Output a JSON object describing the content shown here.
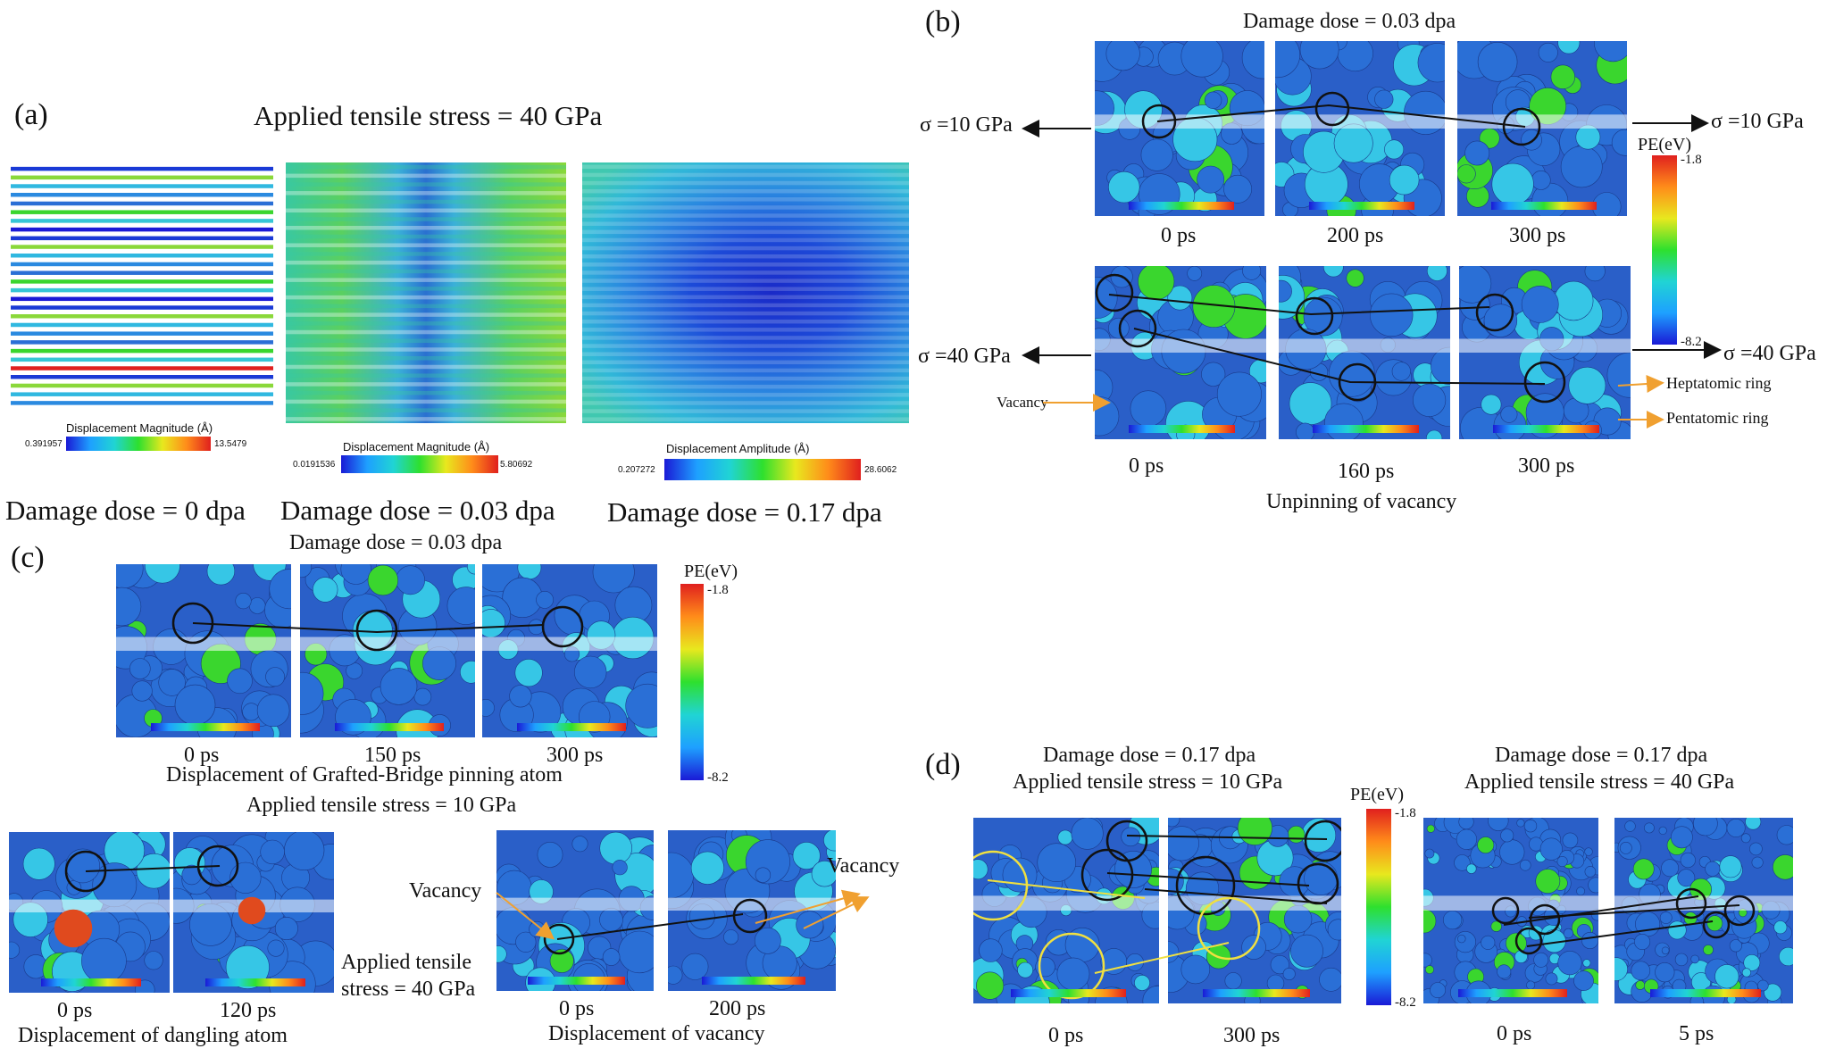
{
  "panels": {
    "a": {
      "letter": "(a)",
      "title": "Applied tensile stress = 40 GPa",
      "maps": [
        {
          "caption": "Damage dose = 0 dpa",
          "legend_title": "Displacement Magnitude (Å)",
          "min": "0.391957",
          "max": "13.5479"
        },
        {
          "caption": "Damage dose = 0.03 dpa",
          "legend_title": "Displacement Magnitude (Å)",
          "min": "0.0191536",
          "max": "5.80692"
        },
        {
          "caption": "Damage dose = 0.17 dpa",
          "legend_title": "Displacement Amplitude (Å)",
          "min": "0.207272",
          "max": "28.6062"
        }
      ]
    },
    "b": {
      "letter": "(b)",
      "title": "Damage dose = 0.03 dpa",
      "top_row_times": [
        "0 ps",
        "200 ps",
        "300 ps"
      ],
      "bottom_row_times": [
        "0 ps",
        "160 ps",
        "300 ps"
      ],
      "stress_top_left": "σ =10 GPa",
      "stress_top_right": "σ =10 GPa",
      "stress_bottom_left": "σ =40 GPa",
      "stress_bottom_right": "σ =40 GPa",
      "pe_label": "PE(eV)",
      "pe_max": "-1.8",
      "pe_min": "-8.2",
      "vacancy_label": "Vacancy",
      "heptatomic_label": "Heptatomic ring",
      "pentatomic_label": "Pentatomic ring",
      "caption": "Unpinning of vacancy"
    },
    "c": {
      "letter": "(c)",
      "title": "Damage dose = 0.03 dpa",
      "top_times": [
        "0 ps",
        "150 ps",
        "300 ps"
      ],
      "top_caption": "Displacement of Grafted-Bridge pinning atom",
      "stress_10": "Applied tensile stress = 10 GPa",
      "pe_label": "PE(eV)",
      "pe_max": "-1.8",
      "pe_min": "-8.2",
      "dangling_times": [
        "0 ps",
        "120 ps"
      ],
      "dangling_caption": "Displacement of dangling atom",
      "stress_40_line1": "Applied tensile",
      "stress_40_line2": "stress = 40 GPa",
      "vacancy_left": "Vacancy",
      "vacancy_right": "Vacancy",
      "vacancy_times": [
        "0 ps",
        "200 ps"
      ],
      "vacancy_caption": "Displacement of vacancy"
    },
    "d": {
      "letter": "(d)",
      "left_title_1": "Damage dose = 0.17 dpa",
      "left_title_2": "Applied tensile stress = 10 GPa",
      "right_title_1": "Damage dose = 0.17 dpa",
      "right_title_2": "Applied tensile stress = 40 GPa",
      "pe_label": "PE(eV)",
      "pe_max": "-1.8",
      "pe_min": "-8.2",
      "left_times": [
        "0 ps",
        "300 ps"
      ],
      "right_times": [
        "0 ps",
        "5 ps"
      ]
    }
  },
  "colors": {
    "atom_blue": "#2a6fd6",
    "atom_cyan": "#36c6e6",
    "atom_green": "#3ad62e",
    "atom_red": "#e04a1e",
    "arrow_black": "#111111",
    "arrow_orange": "#f0a030"
  }
}
